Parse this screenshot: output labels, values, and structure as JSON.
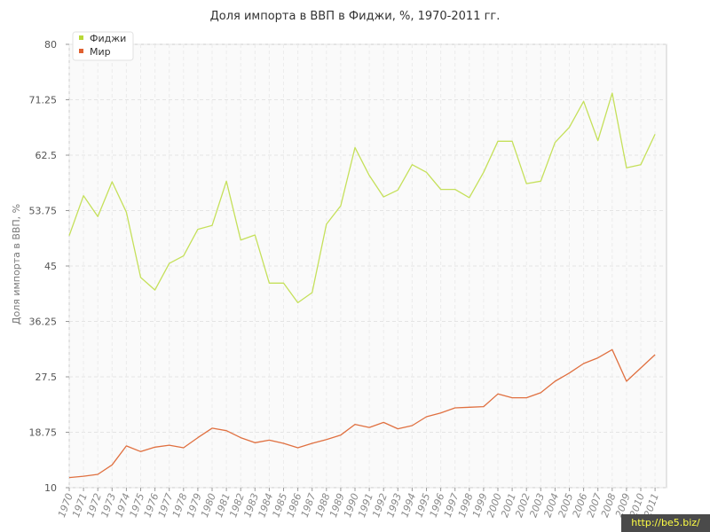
{
  "chart_data": {
    "type": "line",
    "title": "Доля импорта в ВВП в Фиджи, %, 1970-2011 гг.",
    "xlabel": "",
    "ylabel": "Доля импорта в ВВП, %",
    "ylim": [
      10,
      80
    ],
    "y_ticks": [
      "10",
      "18.75",
      "27.5",
      "36.25",
      "45",
      "53.75",
      "62.5",
      "71.25",
      "80"
    ],
    "grid": true,
    "legend_position": "top-left",
    "categories": [
      "1970",
      "1971",
      "1972",
      "1973",
      "1974",
      "1975",
      "1976",
      "1977",
      "1978",
      "1979",
      "1980",
      "1981",
      "1982",
      "1983",
      "1984",
      "1985",
      "1986",
      "1987",
      "1988",
      "1989",
      "1990",
      "1991",
      "1992",
      "1993",
      "1994",
      "1995",
      "1996",
      "1997",
      "1998",
      "1999",
      "2000",
      "2001",
      "2002",
      "2003",
      "2004",
      "2005",
      "2006",
      "2007",
      "2008",
      "2009",
      "2010",
      "2011"
    ],
    "series": [
      {
        "name": "Фиджи",
        "color": "#c5e05a",
        "values": [
          49.8,
          56.1,
          52.8,
          58.3,
          53.5,
          43.2,
          41.2,
          45.4,
          46.6,
          50.8,
          51.4,
          58.4,
          49.1,
          49.9,
          42.3,
          42.3,
          39.2,
          40.8,
          51.6,
          54.5,
          63.7,
          59.3,
          55.9,
          57.0,
          61.0,
          59.8,
          57.1,
          57.1,
          55.8,
          59.8,
          64.7,
          64.7,
          58.0,
          58.4,
          64.5,
          66.9,
          71.0,
          64.8,
          72.3,
          60.5,
          61.0,
          65.8
        ]
      },
      {
        "name": "Мир",
        "color": "#e07040",
        "values": [
          11.6,
          11.8,
          12.1,
          13.6,
          16.6,
          15.7,
          16.4,
          16.7,
          16.3,
          17.9,
          19.4,
          19.0,
          17.9,
          17.1,
          17.5,
          17.0,
          16.3,
          17.0,
          17.6,
          18.3,
          20.0,
          19.5,
          20.3,
          19.3,
          19.8,
          21.2,
          21.8,
          22.6,
          22.7,
          22.8,
          24.8,
          24.2,
          24.2,
          25.0,
          26.8,
          28.1,
          29.6,
          30.5,
          31.8,
          26.8,
          28.9,
          31.0
        ]
      }
    ]
  },
  "watermark": "http://be5.biz/"
}
